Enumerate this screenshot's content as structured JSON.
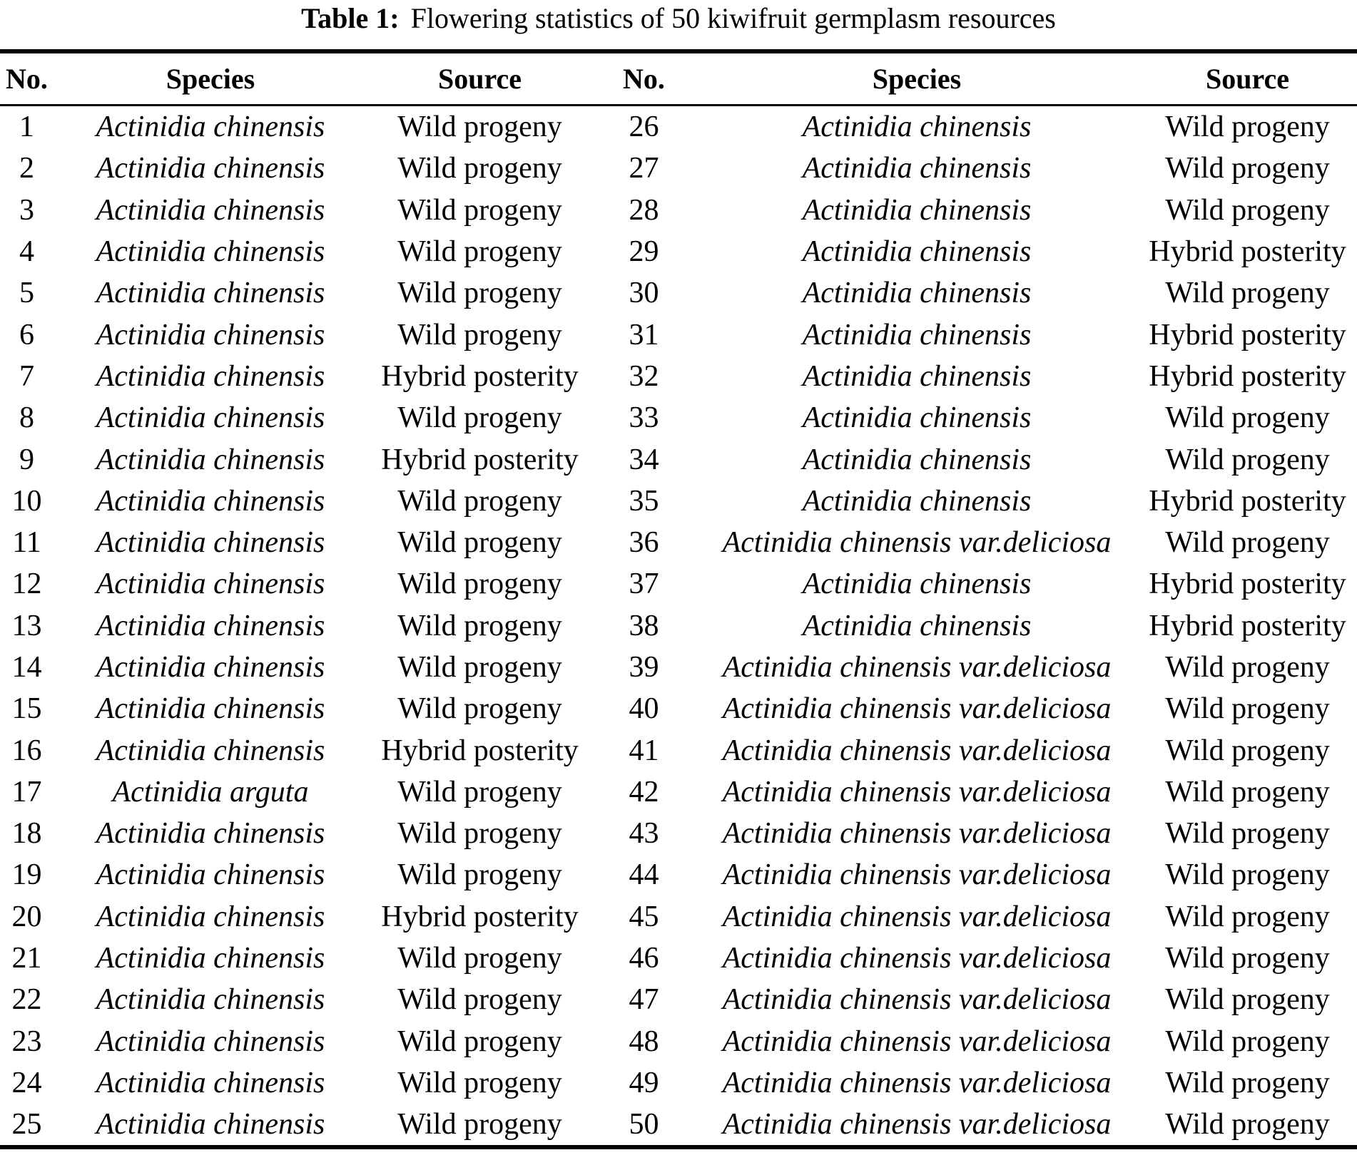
{
  "colors": {
    "background": "#ffffff",
    "text": "#000000",
    "rule": "#000000"
  },
  "title": {
    "label": "Table 1:",
    "text": "Flowering statistics of 50 kiwifruit germplasm resources"
  },
  "table": {
    "headers": [
      "No.",
      "Species",
      "Source",
      "No.",
      "Species",
      "Source"
    ],
    "rows": [
      {
        "no_left": "1",
        "species_left": "Actinidia chinensis",
        "source_left": "Wild progeny",
        "no_right": "26",
        "species_right": "Actinidia chinensis",
        "source_right": "Wild progeny"
      },
      {
        "no_left": "2",
        "species_left": "Actinidia chinensis",
        "source_left": "Wild progeny",
        "no_right": "27",
        "species_right": "Actinidia chinensis",
        "source_right": "Wild progeny"
      },
      {
        "no_left": "3",
        "species_left": "Actinidia chinensis",
        "source_left": "Wild progeny",
        "no_right": "28",
        "species_right": "Actinidia chinensis",
        "source_right": "Wild progeny"
      },
      {
        "no_left": "4",
        "species_left": "Actinidia chinensis",
        "source_left": "Wild progeny",
        "no_right": "29",
        "species_right": "Actinidia chinensis",
        "source_right": "Hybrid posterity"
      },
      {
        "no_left": "5",
        "species_left": "Actinidia chinensis",
        "source_left": "Wild progeny",
        "no_right": "30",
        "species_right": "Actinidia chinensis",
        "source_right": "Wild progeny"
      },
      {
        "no_left": "6",
        "species_left": "Actinidia chinensis",
        "source_left": "Wild progeny",
        "no_right": "31",
        "species_right": "Actinidia chinensis",
        "source_right": "Hybrid posterity"
      },
      {
        "no_left": "7",
        "species_left": "Actinidia chinensis",
        "source_left": "Hybrid posterity",
        "no_right": "32",
        "species_right": "Actinidia chinensis",
        "source_right": "Hybrid posterity"
      },
      {
        "no_left": "8",
        "species_left": "Actinidia chinensis",
        "source_left": "Wild progeny",
        "no_right": "33",
        "species_right": "Actinidia chinensis",
        "source_right": "Wild progeny"
      },
      {
        "no_left": "9",
        "species_left": "Actinidia chinensis",
        "source_left": "Hybrid posterity",
        "no_right": "34",
        "species_right": "Actinidia chinensis",
        "source_right": "Wild progeny"
      },
      {
        "no_left": "10",
        "species_left": "Actinidia chinensis",
        "source_left": "Wild progeny",
        "no_right": "35",
        "species_right": "Actinidia chinensis",
        "source_right": "Hybrid posterity"
      },
      {
        "no_left": "11",
        "species_left": "Actinidia chinensis",
        "source_left": "Wild progeny",
        "no_right": "36",
        "species_right": "Actinidia chinensis var.deliciosa",
        "source_right": "Wild progeny"
      },
      {
        "no_left": "12",
        "species_left": "Actinidia chinensis",
        "source_left": "Wild progeny",
        "no_right": "37",
        "species_right": "Actinidia chinensis",
        "source_right": "Hybrid posterity"
      },
      {
        "no_left": "13",
        "species_left": "Actinidia chinensis",
        "source_left": "Wild progeny",
        "no_right": "38",
        "species_right": "Actinidia chinensis",
        "source_right": "Hybrid posterity"
      },
      {
        "no_left": "14",
        "species_left": "Actinidia chinensis",
        "source_left": "Wild progeny",
        "no_right": "39",
        "species_right": "Actinidia chinensis var.deliciosa",
        "source_right": "Wild progeny"
      },
      {
        "no_left": "15",
        "species_left": "Actinidia chinensis",
        "source_left": "Wild progeny",
        "no_right": "40",
        "species_right": "Actinidia chinensis var.deliciosa",
        "source_right": "Wild progeny"
      },
      {
        "no_left": "16",
        "species_left": "Actinidia chinensis",
        "source_left": "Hybrid posterity",
        "no_right": "41",
        "species_right": "Actinidia chinensis var.deliciosa",
        "source_right": "Wild progeny"
      },
      {
        "no_left": "17",
        "species_left": "Actinidia arguta",
        "source_left": "Wild progeny",
        "no_right": "42",
        "species_right": "Actinidia chinensis var.deliciosa",
        "source_right": "Wild progeny"
      },
      {
        "no_left": "18",
        "species_left": "Actinidia chinensis",
        "source_left": "Wild progeny",
        "no_right": "43",
        "species_right": "Actinidia chinensis var.deliciosa",
        "source_right": "Wild progeny"
      },
      {
        "no_left": "19",
        "species_left": "Actinidia chinensis",
        "source_left": "Wild progeny",
        "no_right": "44",
        "species_right": "Actinidia chinensis var.deliciosa",
        "source_right": "Wild progeny"
      },
      {
        "no_left": "20",
        "species_left": "Actinidia chinensis",
        "source_left": "Hybrid posterity",
        "no_right": "45",
        "species_right": "Actinidia chinensis var.deliciosa",
        "source_right": "Wild progeny"
      },
      {
        "no_left": "21",
        "species_left": "Actinidia chinensis",
        "source_left": "Wild progeny",
        "no_right": "46",
        "species_right": "Actinidia chinensis var.deliciosa",
        "source_right": "Wild progeny"
      },
      {
        "no_left": "22",
        "species_left": "Actinidia chinensis",
        "source_left": "Wild progeny",
        "no_right": "47",
        "species_right": "Actinidia chinensis var.deliciosa",
        "source_right": "Wild progeny"
      },
      {
        "no_left": "23",
        "species_left": "Actinidia chinensis",
        "source_left": "Wild progeny",
        "no_right": "48",
        "species_right": "Actinidia chinensis var.deliciosa",
        "source_right": "Wild progeny"
      },
      {
        "no_left": "24",
        "species_left": "Actinidia chinensis",
        "source_left": "Wild progeny",
        "no_right": "49",
        "species_right": "Actinidia chinensis var.deliciosa",
        "source_right": "Wild progeny"
      },
      {
        "no_left": "25",
        "species_left": "Actinidia chinensis",
        "source_left": "Wild progeny",
        "no_right": "50",
        "species_right": "Actinidia chinensis var.deliciosa",
        "source_right": "Wild progeny"
      }
    ]
  }
}
